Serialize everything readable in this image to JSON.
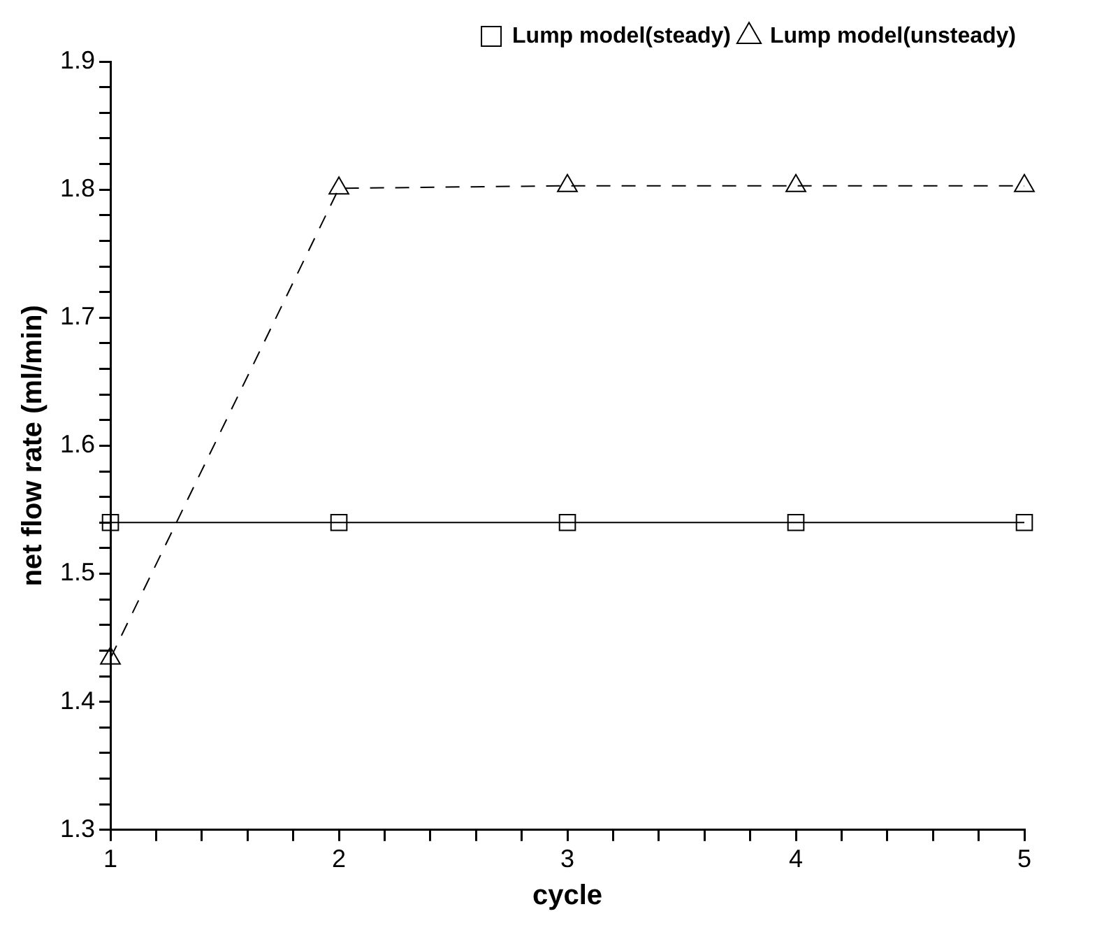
{
  "chart_data": {
    "type": "line",
    "xlabel": "cycle",
    "ylabel": "net flow rate (ml/min)",
    "x": [
      1,
      2,
      3,
      4,
      5
    ],
    "series": [
      {
        "name": "Lump model(steady)",
        "color": "#000000",
        "values": [
          1.54,
          1.54,
          1.54,
          1.54,
          1.54
        ],
        "marker": "square",
        "line_style": "solid"
      },
      {
        "name": "Lump model(unsteady)",
        "color": "#000000",
        "values": [
          1.434,
          1.801,
          1.803,
          1.803,
          1.803
        ],
        "marker": "triangle",
        "line_style": "dashed"
      }
    ],
    "xlim": [
      1,
      5
    ],
    "xticks": [
      1,
      {
        "value": 1.2,
        "label": null
      },
      {
        "value": 1.4,
        "label": null
      },
      {
        "value": 1.6,
        "label": null
      },
      {
        "value": 1.8,
        "label": null
      },
      2,
      {
        "value": 2.2,
        "label": null
      },
      {
        "value": 2.4,
        "label": null
      },
      {
        "value": 2.6,
        "label": null
      },
      {
        "value": 2.8,
        "label": null
      },
      3,
      {
        "value": 3.2,
        "label": null
      },
      {
        "value": 3.4,
        "label": null
      },
      {
        "value": 3.6,
        "label": null
      },
      {
        "value": 3.8,
        "label": null
      },
      4,
      {
        "value": 4.2,
        "label": null
      },
      {
        "value": 4.4,
        "label": null
      },
      {
        "value": 4.6,
        "label": null
      },
      {
        "value": 4.8,
        "label": null
      },
      5
    ],
    "ylim": [
      1.3,
      1.9
    ],
    "yticks": [
      1.3,
      {
        "value": 1.32,
        "label": null
      },
      {
        "value": 1.34,
        "label": null
      },
      {
        "value": 1.36,
        "label": null
      },
      {
        "value": 1.38,
        "label": null
      },
      1.4,
      {
        "value": 1.42,
        "label": null
      },
      {
        "value": 1.44,
        "label": null
      },
      {
        "value": 1.46,
        "label": null
      },
      {
        "value": 1.48,
        "label": null
      },
      1.5,
      {
        "value": 1.52,
        "label": null
      },
      {
        "value": 1.54,
        "label": null
      },
      {
        "value": 1.56,
        "label": null
      },
      {
        "value": 1.58,
        "label": null
      },
      1.6,
      {
        "value": 1.62,
        "label": null
      },
      {
        "value": 1.64,
        "label": null
      },
      {
        "value": 1.66,
        "label": null
      },
      {
        "value": 1.68,
        "label": null
      },
      1.7,
      {
        "value": 1.72,
        "label": null
      },
      {
        "value": 1.74,
        "label": null
      },
      {
        "value": 1.76,
        "label": null
      },
      {
        "value": 1.78,
        "label": null
      },
      1.8,
      {
        "value": 1.82,
        "label": null
      },
      {
        "value": 1.84,
        "label": null
      },
      {
        "value": 1.86,
        "label": null
      },
      {
        "value": 1.88,
        "label": null
      },
      1.9
    ],
    "grid": false,
    "legend": "top right"
  }
}
